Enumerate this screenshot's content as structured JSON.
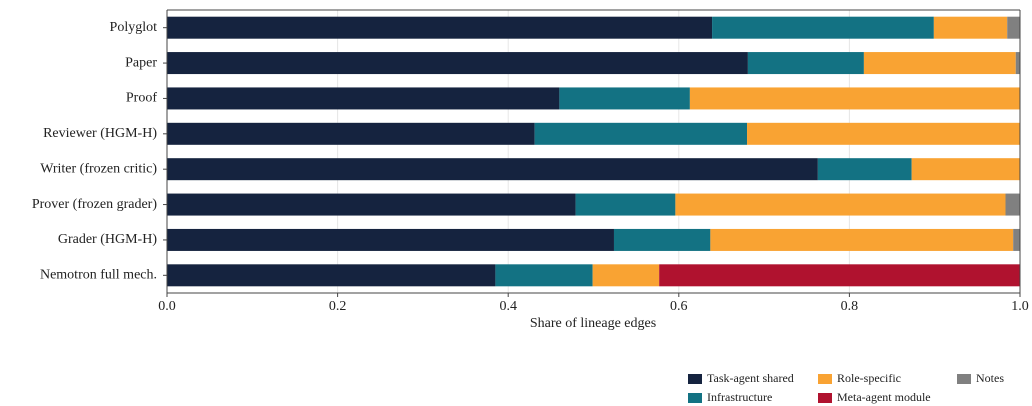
{
  "chart_data": {
    "type": "stacked-bar-horizontal",
    "xlabel": "Share of lineage edges",
    "categories": [
      "Polyglot",
      "Paper",
      "Proof",
      "Reviewer (HGM-H)",
      "Writer (frozen critic)",
      "Prover (frozen grader)",
      "Grader (HGM-H)",
      "Nemotron full mech."
    ],
    "series": [
      {
        "name": "Task-agent shared",
        "color": "#15233f",
        "values": [
          0.639,
          0.681,
          0.46,
          0.431,
          0.763,
          0.479,
          0.524,
          0.385
        ]
      },
      {
        "name": "Infrastructure",
        "color": "#137283",
        "values": [
          0.26,
          0.136,
          0.153,
          0.249,
          0.11,
          0.117,
          0.113,
          0.114
        ]
      },
      {
        "name": "Role-specific",
        "color": "#f9a333",
        "values": [
          0.086,
          0.178,
          0.387,
          0.32,
          0.127,
          0.387,
          0.355,
          0.078
        ]
      },
      {
        "name": "Meta-agent module",
        "color": "#b0122f",
        "values": [
          0,
          0,
          0,
          0,
          0,
          0,
          0,
          0.423
        ]
      },
      {
        "name": "Notes",
        "color": "#808080",
        "values": [
          0.015,
          0.005,
          0,
          0,
          0,
          0.017,
          0.008,
          0
        ]
      }
    ],
    "xlim": [
      0,
      1
    ],
    "xticks": [
      {
        "value": 0,
        "label": "0.0"
      },
      0.2,
      0.4,
      0.6,
      0.8,
      {
        "value": 1,
        "label": "1.0"
      }
    ],
    "grid": true,
    "legend": "bottom-right"
  }
}
